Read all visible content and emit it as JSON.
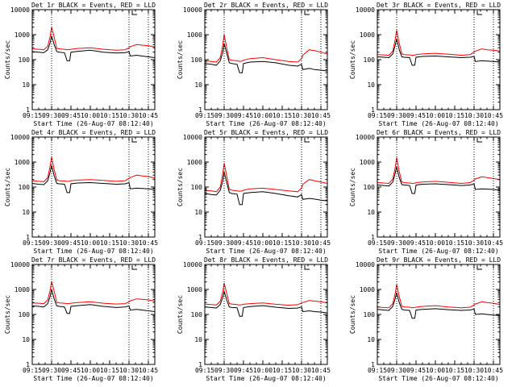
{
  "figure": {
    "x_tick_labels": [
      "09:15",
      "09:30",
      "09:45",
      "10:00",
      "10:15",
      "10:30",
      "10:45"
    ],
    "y_tick_labels": [
      "1",
      "10",
      "100",
      "1000",
      "10000"
    ],
    "colors": {
      "events": "#000000",
      "lld": "#ff0000",
      "axes": "#000000",
      "background": "#ffffff"
    }
  },
  "chart_data": [
    {
      "type": "line",
      "title": "Det 1r BLACK = Events, RED = LLD",
      "xlabel": "Start Time (26-Aug-07 08:12:40)",
      "ylabel": "Counts/sec",
      "y_scale": "log",
      "ylim": [
        1,
        10000
      ],
      "xlim": [
        "09:15",
        "10:50"
      ],
      "grid": false,
      "vlines": [
        "09:30",
        "10:30",
        "10:45"
      ],
      "x": [
        "09:15",
        "09:20",
        "09:24",
        "09:27",
        "09:29",
        "09:30",
        "09:32",
        "09:34",
        "09:36",
        "09:40",
        "09:42",
        "09:44",
        "09:45",
        "09:50",
        "10:00",
        "10:10",
        "10:20",
        "10:27",
        "10:30",
        "10:31",
        "10:36",
        "10:40",
        "10:45",
        "10:50"
      ],
      "series": [
        {
          "name": "Events",
          "values": [
            210,
            200,
            190,
            250,
            500,
            900,
            400,
            210,
            200,
            190,
            90,
            90,
            200,
            215,
            240,
            200,
            185,
            190,
            210,
            140,
            150,
            140,
            130,
            120
          ]
        },
        {
          "name": "LLD",
          "values": [
            270,
            260,
            250,
            350,
            900,
            2000,
            800,
            280,
            270,
            260,
            250,
            255,
            260,
            280,
            300,
            260,
            240,
            250,
            300,
            330,
            400,
            380,
            360,
            320
          ]
        }
      ]
    },
    {
      "type": "line",
      "title": "Det 2r BLACK = Events, RED = LLD",
      "xlabel": "Start Time (26-Aug-07 08:12:40)",
      "ylabel": "Counts/sec",
      "y_scale": "log",
      "ylim": [
        1,
        10000
      ],
      "xlim": [
        "09:15",
        "10:50"
      ],
      "grid": false,
      "vlines": [
        "09:30",
        "10:30",
        "10:45"
      ],
      "x": [
        "09:15",
        "09:20",
        "09:24",
        "09:27",
        "09:29",
        "09:30",
        "09:32",
        "09:34",
        "09:36",
        "09:40",
        "09:42",
        "09:44",
        "09:45",
        "09:50",
        "10:00",
        "10:10",
        "10:20",
        "10:27",
        "10:30",
        "10:31",
        "10:36",
        "10:40",
        "10:45",
        "10:50"
      ],
      "series": [
        {
          "name": "Events",
          "values": [
            70,
            65,
            60,
            90,
            200,
            450,
            180,
            75,
            70,
            65,
            30,
            30,
            70,
            80,
            85,
            75,
            60,
            55,
            65,
            40,
            45,
            40,
            38,
            35
          ]
        },
        {
          "name": "LLD",
          "values": [
            90,
            85,
            80,
            120,
            400,
            1000,
            300,
            100,
            95,
            90,
            85,
            88,
            95,
            110,
            120,
            100,
            85,
            80,
            110,
            150,
            250,
            230,
            200,
            170
          ]
        }
      ]
    },
    {
      "type": "line",
      "title": "Det 3r BLACK = Events, RED = LLD",
      "xlabel": "Start Time (26-Aug-07 08:12:40)",
      "ylabel": "Counts/sec",
      "y_scale": "log",
      "ylim": [
        1,
        10000
      ],
      "xlim": [
        "09:15",
        "10:50"
      ],
      "grid": false,
      "vlines": [
        "09:30",
        "10:30",
        "10:45"
      ],
      "x": [
        "09:15",
        "09:20",
        "09:24",
        "09:27",
        "09:29",
        "09:30",
        "09:32",
        "09:34",
        "09:36",
        "09:40",
        "09:42",
        "09:44",
        "09:45",
        "09:50",
        "10:00",
        "10:10",
        "10:20",
        "10:27",
        "10:30",
        "10:31",
        "10:36",
        "10:40",
        "10:45",
        "10:50"
      ],
      "series": [
        {
          "name": "Events",
          "values": [
            130,
            125,
            120,
            170,
            400,
            700,
            250,
            130,
            125,
            120,
            60,
            60,
            125,
            135,
            140,
            130,
            120,
            125,
            135,
            85,
            90,
            88,
            85,
            80
          ]
        },
        {
          "name": "LLD",
          "values": [
            160,
            155,
            150,
            220,
            700,
            1500,
            450,
            170,
            160,
            155,
            150,
            152,
            160,
            170,
            180,
            165,
            150,
            160,
            200,
            220,
            270,
            250,
            240,
            220
          ]
        }
      ]
    },
    {
      "type": "line",
      "title": "Det 4r BLACK = Events, RED = LLD",
      "xlabel": "Start Time (26-Aug-07 08:12:40)",
      "ylabel": "Counts/sec",
      "y_scale": "log",
      "ylim": [
        1,
        10000
      ],
      "xlim": [
        "09:15",
        "10:50"
      ],
      "grid": false,
      "vlines": [
        "09:30",
        "10:30",
        "10:45"
      ],
      "x": [
        "09:15",
        "09:20",
        "09:24",
        "09:27",
        "09:29",
        "09:30",
        "09:32",
        "09:34",
        "09:36",
        "09:40",
        "09:42",
        "09:44",
        "09:45",
        "09:50",
        "10:00",
        "10:10",
        "10:20",
        "10:27",
        "10:30",
        "10:31",
        "10:36",
        "10:40",
        "10:45",
        "10:50"
      ],
      "series": [
        {
          "name": "Events",
          "values": [
            140,
            130,
            125,
            180,
            420,
            750,
            280,
            140,
            135,
            130,
            60,
            60,
            135,
            145,
            150,
            140,
            130,
            135,
            150,
            85,
            90,
            88,
            85,
            80
          ]
        },
        {
          "name": "LLD",
          "values": [
            180,
            170,
            165,
            240,
            750,
            1600,
            500,
            190,
            180,
            175,
            170,
            172,
            180,
            190,
            200,
            185,
            170,
            180,
            220,
            240,
            300,
            280,
            260,
            230
          ]
        }
      ]
    },
    {
      "type": "line",
      "title": "Det 5r BLACK = Events, RED = LLD",
      "xlabel": "Start Time (26-Aug-07 08:12:40)",
      "ylabel": "Counts/sec",
      "y_scale": "log",
      "ylim": [
        1,
        10000
      ],
      "xlim": [
        "09:15",
        "10:50"
      ],
      "grid": false,
      "vlines": [
        "09:30",
        "10:30",
        "10:45"
      ],
      "x": [
        "09:15",
        "09:20",
        "09:24",
        "09:27",
        "09:29",
        "09:30",
        "09:32",
        "09:34",
        "09:36",
        "09:40",
        "09:42",
        "09:44",
        "09:45",
        "09:50",
        "10:00",
        "10:10",
        "10:20",
        "10:27",
        "10:30",
        "10:31",
        "10:36",
        "10:40",
        "10:45",
        "10:50"
      ],
      "series": [
        {
          "name": "Events",
          "values": [
            55,
            50,
            48,
            75,
            180,
            400,
            150,
            60,
            55,
            52,
            20,
            20,
            55,
            60,
            65,
            55,
            45,
            40,
            50,
            32,
            35,
            33,
            30,
            28
          ]
        },
        {
          "name": "LLD",
          "values": [
            75,
            70,
            65,
            100,
            350,
            900,
            280,
            80,
            75,
            70,
            68,
            70,
            75,
            85,
            90,
            80,
            70,
            65,
            90,
            130,
            200,
            180,
            160,
            140
          ]
        }
      ]
    },
    {
      "type": "line",
      "title": "Det 6r BLACK = Events, RED = LLD",
      "xlabel": "Start Time (26-Aug-07 08:12:40)",
      "ylabel": "Counts/sec",
      "y_scale": "log",
      "ylim": [
        1,
        10000
      ],
      "xlim": [
        "09:15",
        "10:50"
      ],
      "grid": false,
      "vlines": [
        "09:30",
        "10:30",
        "10:45"
      ],
      "x": [
        "09:15",
        "09:20",
        "09:24",
        "09:27",
        "09:29",
        "09:30",
        "09:32",
        "09:34",
        "09:36",
        "09:40",
        "09:42",
        "09:44",
        "09:45",
        "09:50",
        "10:00",
        "10:10",
        "10:20",
        "10:27",
        "10:30",
        "10:31",
        "10:36",
        "10:40",
        "10:45",
        "10:50"
      ],
      "series": [
        {
          "name": "Events",
          "values": [
            120,
            115,
            110,
            160,
            380,
            650,
            240,
            125,
            120,
            115,
            55,
            55,
            120,
            130,
            135,
            125,
            115,
            120,
            135,
            80,
            85,
            83,
            80,
            75
          ]
        },
        {
          "name": "LLD",
          "values": [
            150,
            145,
            140,
            210,
            650,
            1500,
            420,
            160,
            150,
            145,
            140,
            142,
            150,
            160,
            170,
            155,
            140,
            150,
            190,
            210,
            260,
            240,
            220,
            200
          ]
        }
      ]
    },
    {
      "type": "line",
      "title": "Det 7r BLACK = Events, RED = LLD",
      "xlabel": "Start Time (26-Aug-07 08:12:40)",
      "ylabel": "Counts/sec",
      "y_scale": "log",
      "ylim": [
        1,
        10000
      ],
      "xlim": [
        "09:15",
        "10:50"
      ],
      "grid": false,
      "vlines": [
        "09:30",
        "10:30",
        "10:45"
      ],
      "x": [
        "09:15",
        "09:20",
        "09:24",
        "09:27",
        "09:29",
        "09:30",
        "09:32",
        "09:34",
        "09:36",
        "09:40",
        "09:42",
        "09:44",
        "09:45",
        "09:50",
        "10:00",
        "10:10",
        "10:20",
        "10:27",
        "10:30",
        "10:31",
        "10:36",
        "10:40",
        "10:45",
        "10:50"
      ],
      "series": [
        {
          "name": "Events",
          "values": [
            220,
            210,
            200,
            270,
            550,
            1000,
            420,
            220,
            210,
            200,
            110,
            110,
            210,
            225,
            250,
            210,
            190,
            200,
            220,
            150,
            160,
            150,
            140,
            130
          ]
        },
        {
          "name": "LLD",
          "values": [
            290,
            280,
            270,
            380,
            1000,
            2100,
            850,
            300,
            290,
            280,
            270,
            275,
            280,
            300,
            320,
            280,
            260,
            270,
            320,
            350,
            420,
            400,
            380,
            340
          ]
        }
      ]
    },
    {
      "type": "line",
      "title": "Det 8r BLACK = Events, RED = LLD",
      "xlabel": "Start Time (26-Aug-07 08:12:40)",
      "ylabel": "Counts/sec",
      "y_scale": "log",
      "ylim": [
        1,
        10000
      ],
      "xlim": [
        "09:15",
        "10:50"
      ],
      "grid": false,
      "vlines": [
        "09:30",
        "10:30",
        "10:45"
      ],
      "x": [
        "09:15",
        "09:20",
        "09:24",
        "09:27",
        "09:29",
        "09:30",
        "09:32",
        "09:34",
        "09:36",
        "09:40",
        "09:42",
        "09:44",
        "09:45",
        "09:50",
        "10:00",
        "10:10",
        "10:20",
        "10:27",
        "10:30",
        "10:31",
        "10:36",
        "10:40",
        "10:45",
        "10:50"
      ],
      "series": [
        {
          "name": "Events",
          "values": [
            200,
            190,
            180,
            250,
            500,
            850,
            380,
            200,
            190,
            185,
            85,
            85,
            190,
            205,
            225,
            195,
            175,
            180,
            200,
            130,
            140,
            130,
            125,
            115
          ]
        },
        {
          "name": "LLD",
          "values": [
            260,
            250,
            240,
            340,
            850,
            1800,
            700,
            270,
            260,
            250,
            240,
            245,
            255,
            270,
            290,
            255,
            235,
            245,
            290,
            300,
            360,
            340,
            320,
            290
          ]
        }
      ]
    },
    {
      "type": "line",
      "title": "Det 9r BLACK = Events, RED = LLD",
      "xlabel": "Start Time (26-Aug-07 08:12:40)",
      "ylabel": "Counts/sec",
      "y_scale": "log",
      "ylim": [
        1,
        10000
      ],
      "xlim": [
        "09:15",
        "10:50"
      ],
      "grid": false,
      "vlines": [
        "09:30",
        "10:30",
        "10:45"
      ],
      "x": [
        "09:15",
        "09:20",
        "09:24",
        "09:27",
        "09:29",
        "09:30",
        "09:32",
        "09:34",
        "09:36",
        "09:40",
        "09:42",
        "09:44",
        "09:45",
        "09:50",
        "10:00",
        "10:10",
        "10:20",
        "10:27",
        "10:30",
        "10:31",
        "10:36",
        "10:40",
        "10:45",
        "10:50"
      ],
      "series": [
        {
          "name": "Events",
          "values": [
            160,
            150,
            145,
            210,
            450,
            750,
            300,
            160,
            150,
            145,
            70,
            70,
            150,
            160,
            170,
            155,
            145,
            150,
            165,
            100,
            105,
            100,
            95,
            90
          ]
        },
        {
          "name": "LLD",
          "values": [
            200,
            190,
            185,
            270,
            750,
            1600,
            520,
            210,
            200,
            195,
            185,
            188,
            195,
            210,
            225,
            200,
            185,
            195,
            240,
            260,
            320,
            300,
            280,
            250
          ]
        }
      ]
    }
  ]
}
